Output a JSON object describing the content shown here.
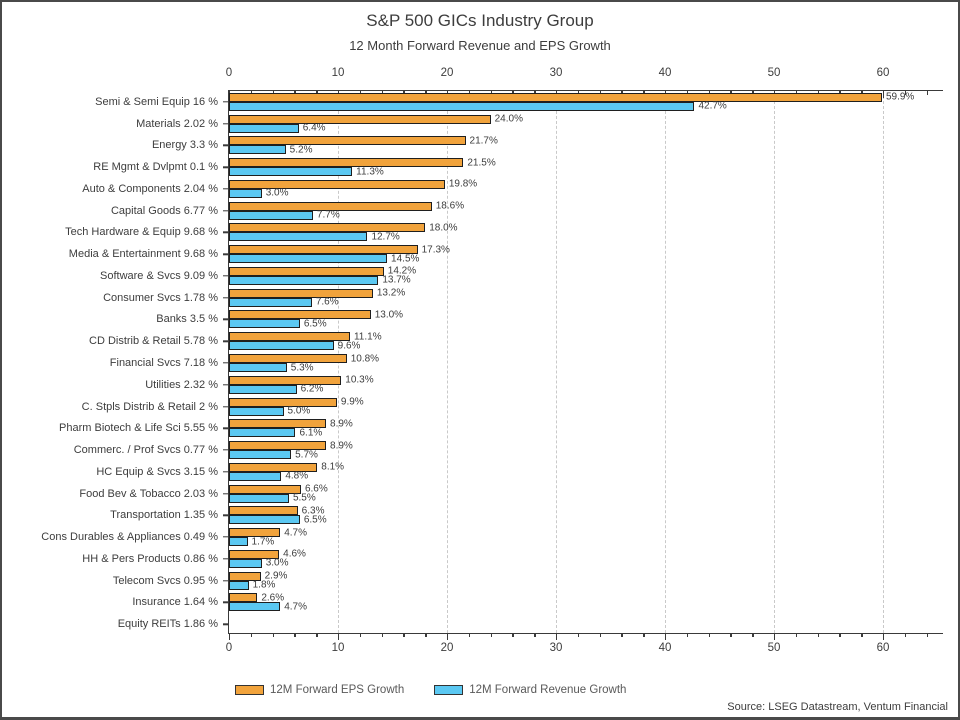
{
  "page": {
    "title": "S&P 500 GICs Industry Group",
    "subtitle": "12 Month Forward Revenue and EPS Growth",
    "source": "Source: LSEG Datastream, Ventum Financial"
  },
  "legend": {
    "eps_label": "12M Forward EPS Growth",
    "rev_label": "12M Forward Revenue Growth"
  },
  "colors": {
    "eps_fill": "#F1A33C",
    "rev_fill": "#5BC8F2",
    "bar_border": "#1F1F1F",
    "axis": "#3A3A3A",
    "grid": "#C9C9C9",
    "text": "#3D3D3D"
  },
  "chart_data": {
    "type": "bar",
    "orientation": "horizontal",
    "title": "S&P 500 GICs Industry Group",
    "subtitle": "12 Month Forward Revenue and EPS Growth",
    "xlim": [
      0,
      65.5
    ],
    "x_major_ticks": [
      0,
      10,
      20,
      30,
      40,
      50,
      60
    ],
    "x_minor_tick_step": 2,
    "grid": "vertical dashed lines at major ticks",
    "legend_position": "bottom",
    "series": [
      {
        "name": "12M Forward EPS Growth",
        "color": "#F1A33C",
        "key": "eps"
      },
      {
        "name": "12M Forward Revenue Growth",
        "color": "#5BC8F2",
        "key": "rev"
      }
    ],
    "rows": [
      {
        "category": "Semi & Semi Equip 16 %",
        "eps": 59.9,
        "rev": 42.7,
        "eps_label": "59.9%",
        "rev_label": "42.7%"
      },
      {
        "category": "Materials 2.02 %",
        "eps": 24.0,
        "rev": 6.4,
        "eps_label": "24.0%",
        "rev_label": "6.4%"
      },
      {
        "category": "Energy 3.3 %",
        "eps": 21.7,
        "rev": 5.2,
        "eps_label": "21.7%",
        "rev_label": "5.2%"
      },
      {
        "category": "RE Mgmt & Dvlpmt 0.1 %",
        "eps": 21.5,
        "rev": 11.3,
        "eps_label": "21.5%",
        "rev_label": "11.3%"
      },
      {
        "category": "Auto & Components 2.04 %",
        "eps": 19.8,
        "rev": 3.0,
        "eps_label": "19.8%",
        "rev_label": "3.0%"
      },
      {
        "category": "Capital Goods 6.77 %",
        "eps": 18.6,
        "rev": 7.7,
        "eps_label": "18.6%",
        "rev_label": "7.7%"
      },
      {
        "category": "Tech Hardware & Equip 9.68 %",
        "eps": 18.0,
        "rev": 12.7,
        "eps_label": "18.0%",
        "rev_label": "12.7%"
      },
      {
        "category": "Media & Entertainment 9.68 %",
        "eps": 17.3,
        "rev": 14.5,
        "eps_label": "17.3%",
        "rev_label": "14.5%"
      },
      {
        "category": "Software & Svcs 9.09 %",
        "eps": 14.2,
        "rev": 13.7,
        "eps_label": "14.2%",
        "rev_label": "13.7%"
      },
      {
        "category": "Consumer Svcs 1.78 %",
        "eps": 13.2,
        "rev": 7.6,
        "eps_label": "13.2%",
        "rev_label": "7.6%"
      },
      {
        "category": "Banks 3.5 %",
        "eps": 13.0,
        "rev": 6.5,
        "eps_label": "13.0%",
        "rev_label": "6.5%"
      },
      {
        "category": "CD Distrib & Retail 5.78 %",
        "eps": 11.1,
        "rev": 9.6,
        "eps_label": "11.1%",
        "rev_label": "9.6%"
      },
      {
        "category": "Financial Svcs 7.18 %",
        "eps": 10.8,
        "rev": 5.3,
        "eps_label": "10.8%",
        "rev_label": "5.3%"
      },
      {
        "category": "Utilities 2.32 %",
        "eps": 10.3,
        "rev": 6.2,
        "eps_label": "10.3%",
        "rev_label": "6.2%"
      },
      {
        "category": "C. Stpls Distrib & Retail 2 %",
        "eps": 9.9,
        "rev": 5.0,
        "eps_label": "9.9%",
        "rev_label": "5.0%"
      },
      {
        "category": "Pharm Biotech & Life Sci 5.55 %",
        "eps": 8.9,
        "rev": 6.1,
        "eps_label": "8.9%",
        "rev_label": "6.1%"
      },
      {
        "category": "Commerc. / Prof Svcs 0.77 %",
        "eps": 8.9,
        "rev": 5.7,
        "eps_label": "8.9%",
        "rev_label": "5.7%"
      },
      {
        "category": "HC Equip & Svcs 3.15 %",
        "eps": 8.1,
        "rev": 4.8,
        "eps_label": "8.1%",
        "rev_label": "4.8%"
      },
      {
        "category": "Food Bev & Tobacco 2.03 %",
        "eps": 6.6,
        "rev": 5.5,
        "eps_label": "6.6%",
        "rev_label": "5.5%"
      },
      {
        "category": "Transportation 1.35 %",
        "eps": 6.3,
        "rev": 6.5,
        "eps_label": "6.3%",
        "rev_label": "6.5%"
      },
      {
        "category": "Cons Durables & Appliances 0.49 %",
        "eps": 4.7,
        "rev": 1.7,
        "eps_label": "4.7%",
        "rev_label": "1.7%"
      },
      {
        "category": "HH & Pers Products 0.86 %",
        "eps": 4.6,
        "rev": 3.0,
        "eps_label": "4.6%",
        "rev_label": "3.0%"
      },
      {
        "category": "Telecom Svcs 0.95 %",
        "eps": 2.9,
        "rev": 1.8,
        "eps_label": "2.9%",
        "rev_label": "1.8%"
      },
      {
        "category": "Insurance 1.64 %",
        "eps": 2.6,
        "rev": 4.7,
        "eps_label": "2.6%",
        "rev_label": "4.7%"
      },
      {
        "category": "Equity REITs 1.86 %",
        "eps": null,
        "rev": null,
        "eps_label": "",
        "rev_label": ""
      }
    ]
  }
}
